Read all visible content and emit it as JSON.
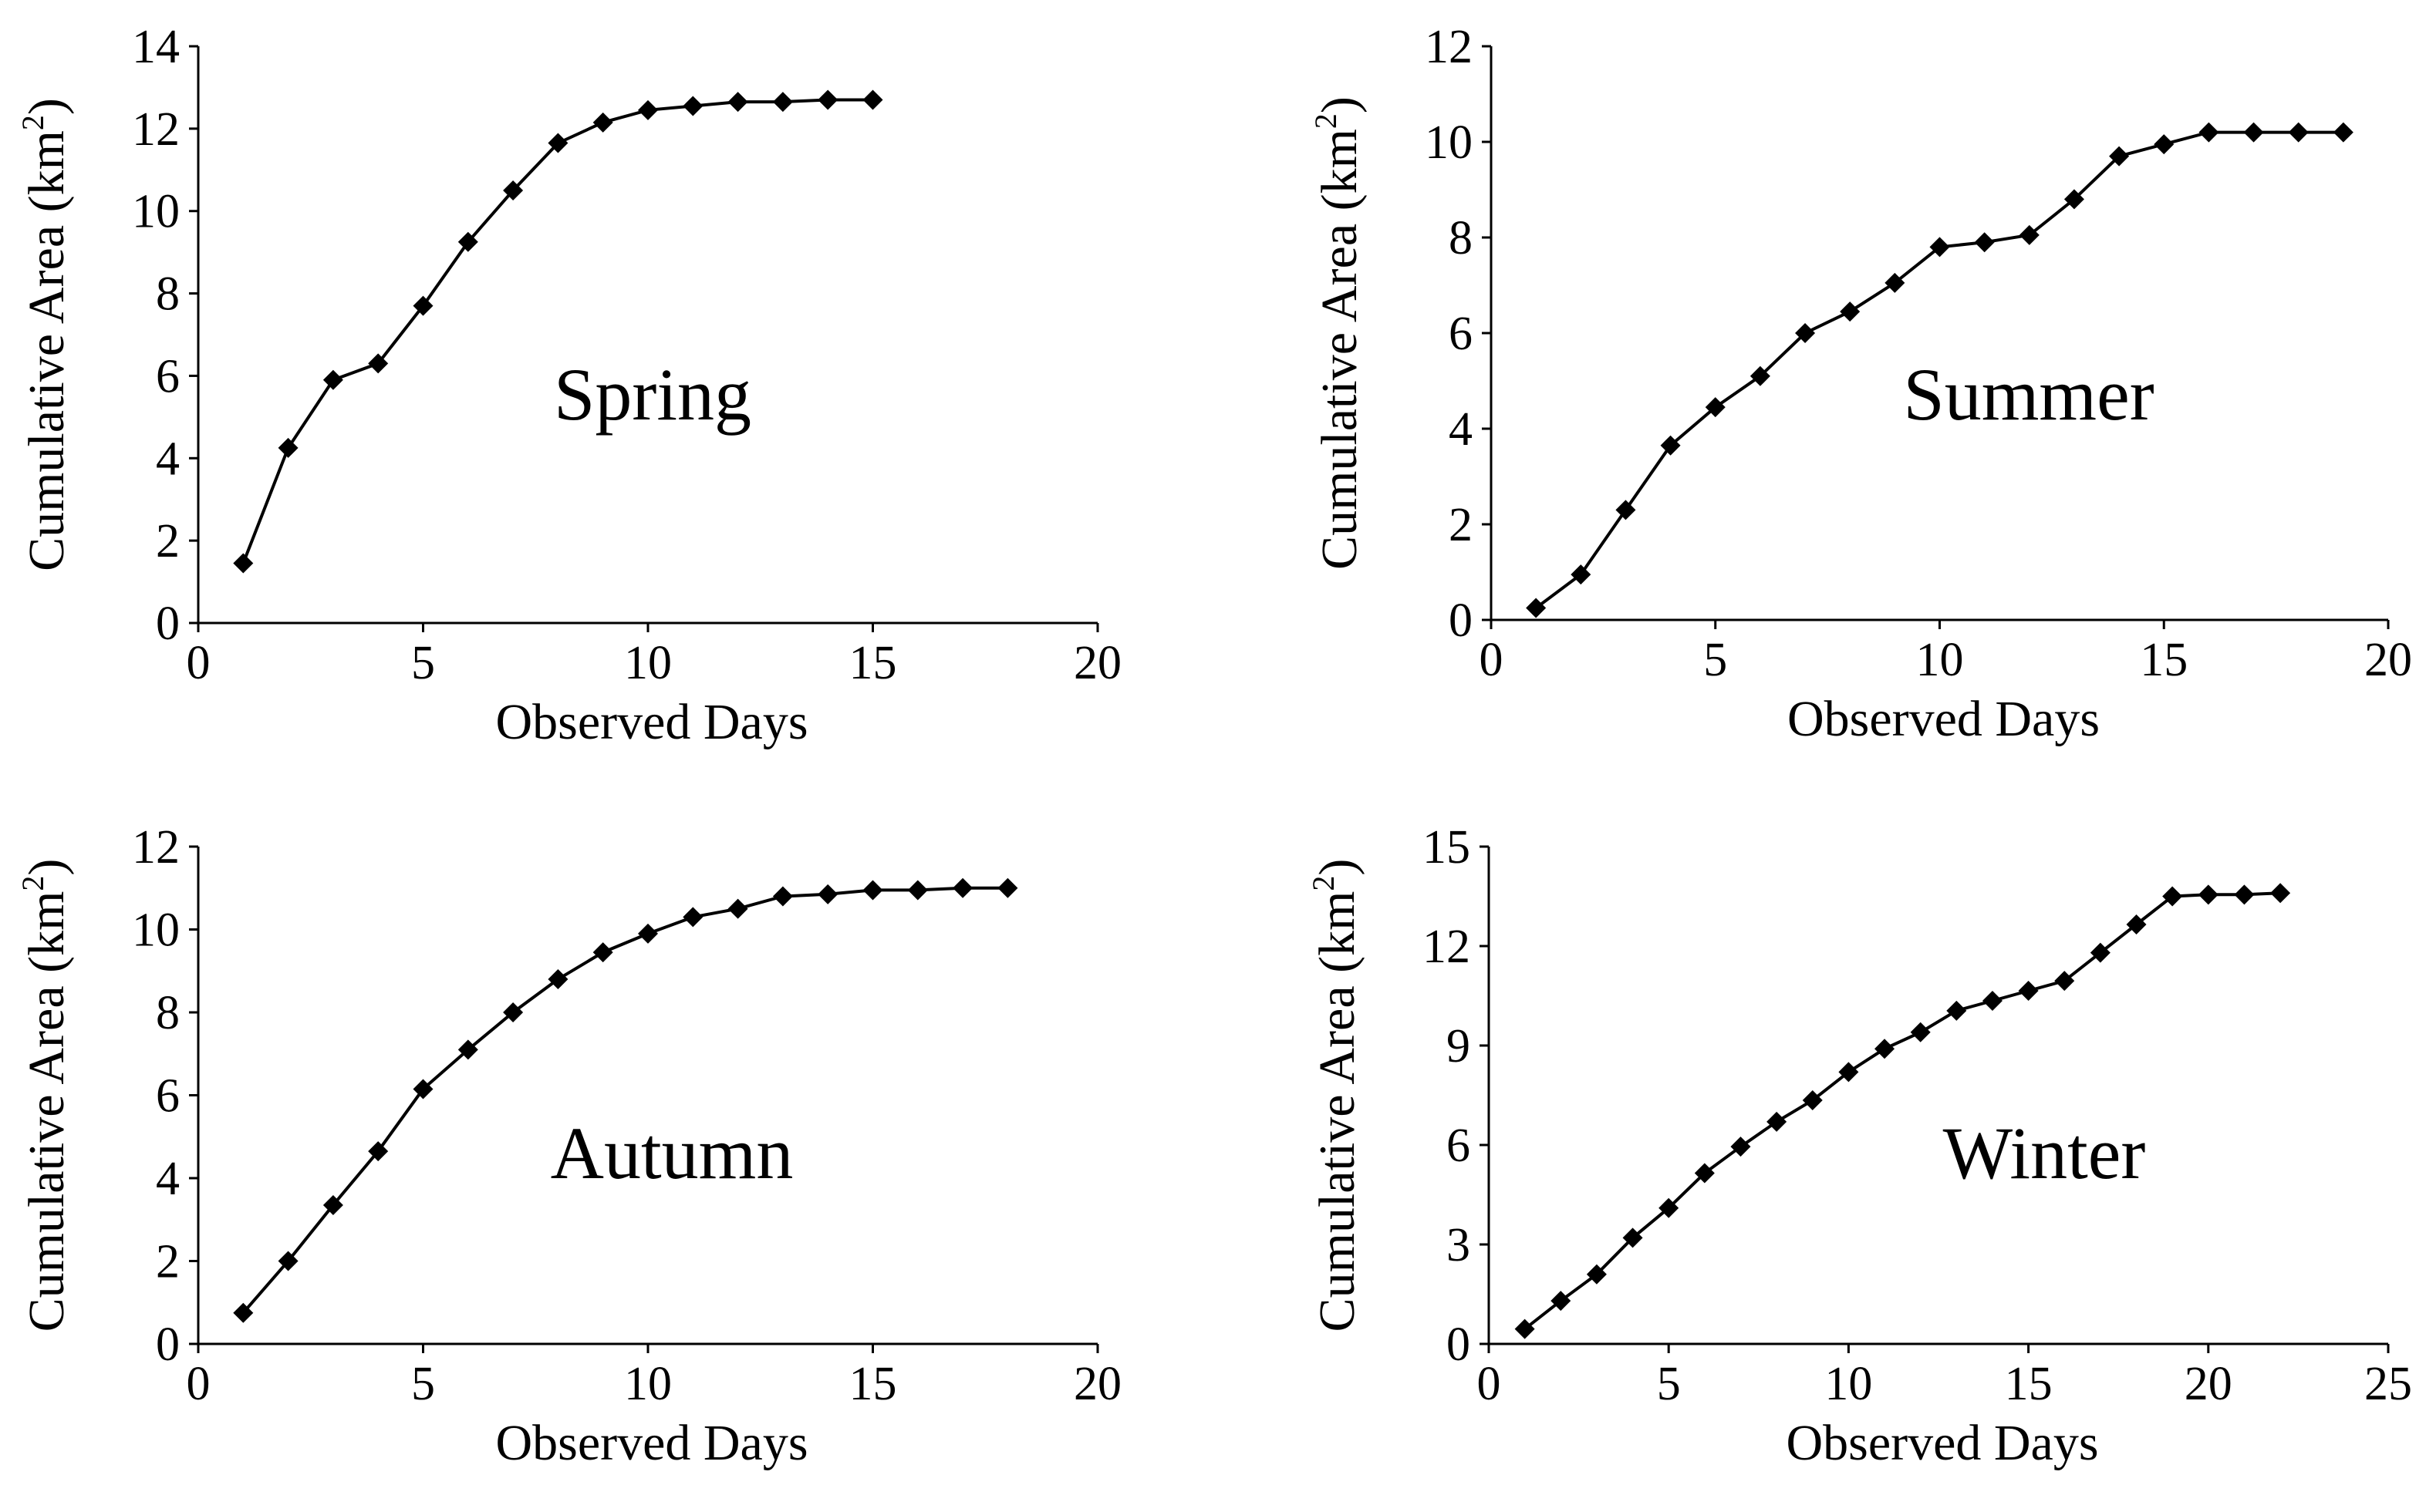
{
  "chart_data": [
    {
      "type": "line",
      "title": "Spring",
      "xlabel": "Observed Days",
      "ylabel": "Cumulative Area (km²)",
      "ylabel_main": "Cumulative Area (km",
      "ylabel_sup": "2",
      "ylabel_close": ")",
      "xlim": [
        0,
        20
      ],
      "ylim": [
        0,
        14
      ],
      "xticks": [
        0,
        5,
        10,
        15,
        20
      ],
      "yticks": [
        0,
        2,
        4,
        6,
        8,
        10,
        12,
        14
      ],
      "x": [
        1,
        2,
        3,
        4,
        5,
        6,
        7,
        8,
        9,
        10,
        11,
        12,
        13,
        14,
        15
      ],
      "y": [
        1.45,
        4.25,
        5.9,
        6.3,
        7.7,
        9.25,
        10.5,
        11.65,
        12.15,
        12.45,
        12.55,
        12.65,
        12.65,
        12.7,
        12.7
      ]
    },
    {
      "type": "line",
      "title": "Summer",
      "xlabel": "Observed Days",
      "ylabel": "Cumulative Area (km²)",
      "ylabel_main": "Cumulative Area (km",
      "ylabel_sup": "2",
      "ylabel_close": ")",
      "xlim": [
        0,
        20
      ],
      "ylim": [
        0,
        12
      ],
      "xticks": [
        0,
        5,
        10,
        15,
        20
      ],
      "yticks": [
        0,
        2,
        4,
        6,
        8,
        10,
        12
      ],
      "x": [
        1,
        2,
        3,
        4,
        5,
        6,
        7,
        8,
        9,
        10,
        11,
        12,
        13,
        14,
        15,
        16,
        17,
        18,
        19
      ],
      "y": [
        0.25,
        0.95,
        2.3,
        3.65,
        4.45,
        5.1,
        6.0,
        6.45,
        7.05,
        7.8,
        7.9,
        8.05,
        8.8,
        9.7,
        9.95,
        10.2,
        10.2,
        10.2,
        10.2
      ]
    },
    {
      "type": "line",
      "title": "Autumn",
      "xlabel": "Observed Days",
      "ylabel": "Cumulative Area (km²)",
      "ylabel_main": "Cumulative Area (km",
      "ylabel_sup": "2",
      "ylabel_close": ")",
      "xlim": [
        0,
        20
      ],
      "ylim": [
        0,
        12
      ],
      "xticks": [
        0,
        5,
        10,
        15,
        20
      ],
      "yticks": [
        0,
        2,
        4,
        6,
        8,
        10,
        12
      ],
      "x": [
        1,
        2,
        3,
        4,
        5,
        6,
        7,
        8,
        9,
        10,
        11,
        12,
        13,
        14,
        15,
        16,
        17,
        18
      ],
      "y": [
        0.75,
        2.0,
        3.35,
        4.65,
        6.15,
        7.1,
        8.0,
        8.8,
        9.45,
        9.9,
        10.3,
        10.5,
        10.8,
        10.85,
        10.95,
        10.95,
        11.0,
        11.0
      ]
    },
    {
      "type": "line",
      "title": "Winter",
      "xlabel": "Observed Days",
      "ylabel": "Cumulative Area (km²)",
      "ylabel_main": "Cumulative Area (km",
      "ylabel_sup": "2",
      "ylabel_close": ")",
      "xlim": [
        0,
        25
      ],
      "ylim": [
        0,
        15
      ],
      "xticks": [
        0,
        5,
        10,
        15,
        20,
        25
      ],
      "yticks": [
        0,
        3,
        6,
        9,
        12,
        15
      ],
      "x": [
        1,
        2,
        3,
        4,
        5,
        6,
        7,
        8,
        9,
        10,
        11,
        12,
        13,
        14,
        15,
        16,
        17,
        18,
        19,
        20,
        21,
        22
      ],
      "y": [
        0.45,
        1.3,
        2.1,
        3.2,
        4.1,
        5.15,
        5.95,
        6.7,
        7.35,
        8.2,
        8.9,
        9.4,
        10.05,
        10.35,
        10.65,
        10.95,
        11.8,
        12.65,
        13.5,
        13.55,
        13.55,
        13.6
      ]
    }
  ]
}
